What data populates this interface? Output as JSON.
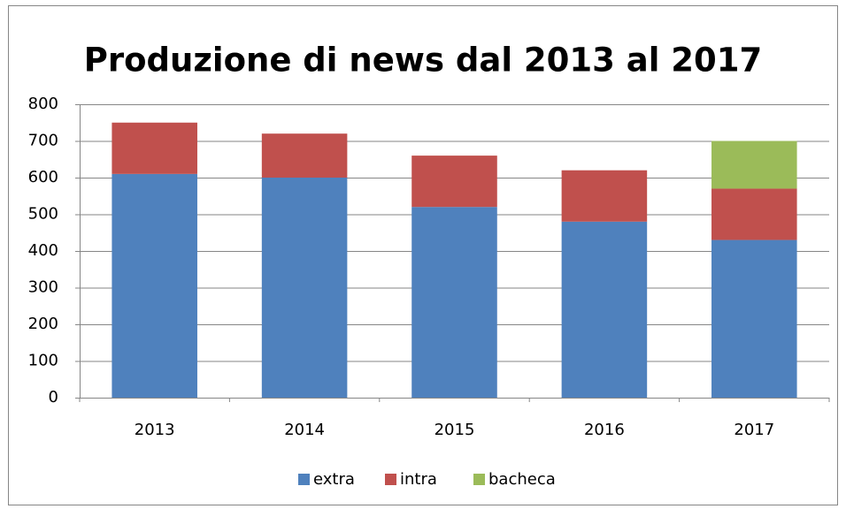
{
  "chart_data": {
    "type": "stacked_bar",
    "title": "Produzione di news dal 2013 al 2017",
    "categories": [
      "2013",
      "2014",
      "2015",
      "2016",
      "2017"
    ],
    "series": [
      {
        "name": "extra",
        "color": "#4f81bd",
        "values": [
          610,
          600,
          520,
          480,
          430
        ]
      },
      {
        "name": "intra",
        "color": "#c0504d",
        "values": [
          140,
          120,
          140,
          140,
          140
        ]
      },
      {
        "name": "bacheca",
        "color": "#9bbb59",
        "values": [
          0,
          0,
          0,
          0,
          130
        ]
      }
    ],
    "ylim": [
      0,
      800
    ],
    "yticks": [
      0,
      100,
      200,
      300,
      400,
      500,
      600,
      700,
      800
    ],
    "grid": true,
    "legend": "bottom"
  }
}
